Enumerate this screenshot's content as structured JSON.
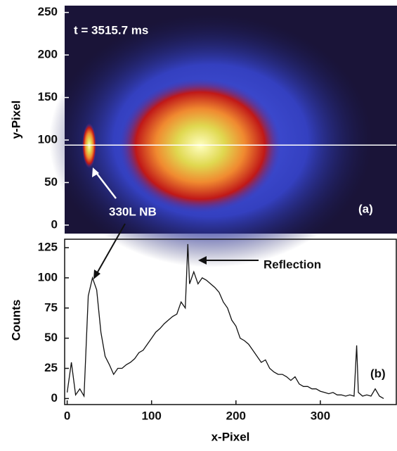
{
  "chart_data": [
    {
      "type": "image",
      "ylabel": "y-Pixel",
      "time_label": "t = 3515.7 ms",
      "annotation": "330L NB",
      "panel_label": "(a)",
      "xlim": [
        -3,
        390
      ],
      "ylim": [
        -10,
        258
      ],
      "yticks": [
        0,
        50,
        100,
        150,
        200,
        250
      ],
      "line_y": 94
    },
    {
      "type": "line",
      "xlabel": "x-Pixel",
      "ylabel": "Counts",
      "annotation": "Reflection",
      "panel_label": "(b)",
      "color": "#111111",
      "xlim": [
        -3,
        390
      ],
      "ylim": [
        -5,
        132
      ],
      "xticks": [
        0,
        100,
        200,
        300
      ],
      "yticks": [
        0,
        25,
        50,
        75,
        100,
        125
      ],
      "x": [
        0,
        5,
        10,
        15,
        20,
        25,
        30,
        35,
        40,
        45,
        50,
        55,
        60,
        65,
        70,
        75,
        80,
        85,
        90,
        95,
        100,
        105,
        110,
        115,
        120,
        125,
        130,
        135,
        140,
        143,
        145,
        150,
        155,
        160,
        165,
        170,
        175,
        180,
        185,
        190,
        195,
        200,
        205,
        210,
        215,
        220,
        225,
        230,
        235,
        240,
        245,
        250,
        255,
        260,
        265,
        270,
        275,
        280,
        285,
        290,
        295,
        300,
        305,
        310,
        315,
        320,
        325,
        330,
        335,
        340,
        343,
        345,
        350,
        355,
        360,
        365,
        370,
        375
      ],
      "values": [
        5,
        30,
        3,
        8,
        2,
        85,
        100,
        90,
        55,
        35,
        28,
        20,
        25,
        25,
        28,
        30,
        33,
        38,
        40,
        45,
        50,
        55,
        58,
        62,
        65,
        68,
        70,
        80,
        75,
        128,
        95,
        105,
        95,
        100,
        98,
        95,
        92,
        88,
        80,
        75,
        65,
        60,
        50,
        48,
        45,
        40,
        35,
        30,
        32,
        25,
        22,
        20,
        20,
        18,
        15,
        18,
        12,
        10,
        10,
        8,
        8,
        6,
        5,
        4,
        5,
        3,
        3,
        2,
        3,
        2,
        44,
        5,
        2,
        3,
        2,
        8,
        2,
        0
      ]
    }
  ]
}
